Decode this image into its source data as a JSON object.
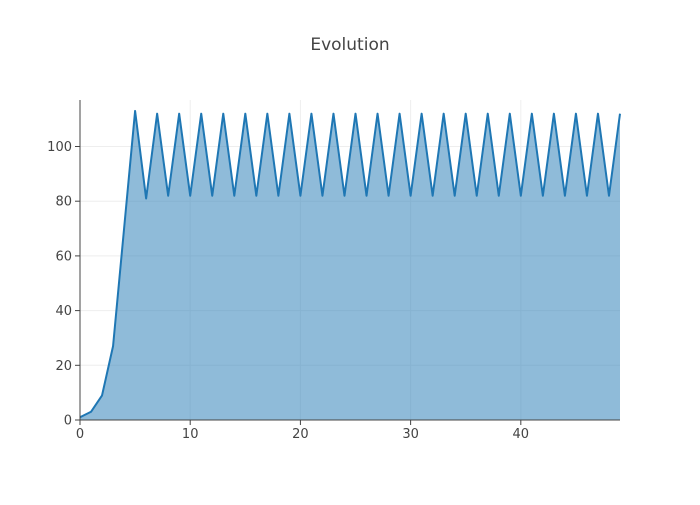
{
  "chart_data": {
    "type": "area",
    "title": "Evolution",
    "xlabel": "",
    "ylabel": "",
    "xlim": [
      0,
      49
    ],
    "ylim": [
      0,
      117
    ],
    "x_ticks": [
      0,
      10,
      20,
      30,
      40
    ],
    "y_ticks": [
      0,
      20,
      40,
      60,
      80,
      100
    ],
    "grid": true,
    "legend": "none",
    "colors": {
      "line": "#1f77b4",
      "fill": "#1f77b4",
      "fill_opacity": 0.5
    },
    "series": [
      {
        "x": [
          0,
          1,
          2,
          3,
          4,
          5,
          6,
          7,
          8,
          9,
          10,
          11,
          12,
          13,
          14,
          15,
          16,
          17,
          18,
          19,
          20,
          21,
          22,
          23,
          24,
          25,
          26,
          27,
          28,
          29,
          30,
          31,
          32,
          33,
          34,
          35,
          36,
          37,
          38,
          39,
          40,
          41,
          42,
          43,
          44,
          45,
          46,
          47,
          48,
          49
        ],
        "values": [
          1,
          3,
          9,
          27,
          70,
          113,
          81,
          112,
          82,
          112,
          82,
          112,
          82,
          112,
          82,
          112,
          82,
          112,
          82,
          112,
          82,
          112,
          82,
          112,
          82,
          112,
          82,
          112,
          82,
          112,
          82,
          112,
          82,
          112,
          82,
          112,
          82,
          112,
          82,
          112,
          82,
          112,
          82,
          112,
          82,
          112,
          82,
          112,
          82,
          112
        ]
      }
    ]
  }
}
